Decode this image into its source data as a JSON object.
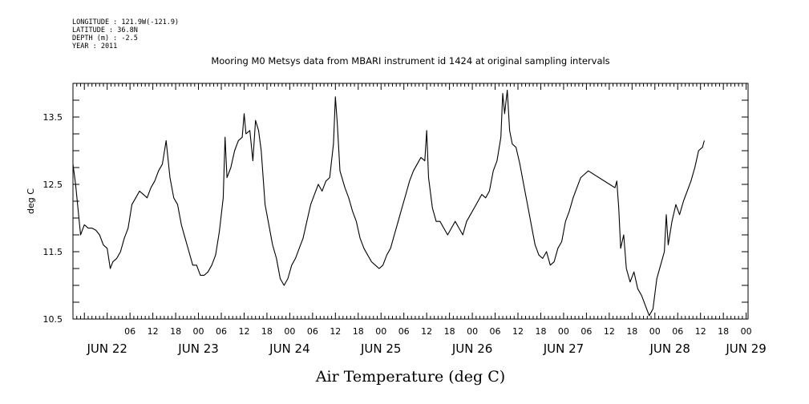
{
  "header": {
    "longitude": "LONGITUDE : 121.9W(-121.9)",
    "latitude": "LATITUDE : 36.8N",
    "depth": "DEPTH (m) : -2.5",
    "year": "YEAR : 2011"
  },
  "chart_data": {
    "type": "line",
    "title": "Mooring M0 Metsys data from MBARI instrument id 1424 at original sampling intervals",
    "xlabel": "Air Temperature (deg C)",
    "ylabel": "deg C",
    "x_units": "hours since JUN 22 00:00, 2011",
    "xlim": [
      -9,
      168.5
    ],
    "ylim": [
      10.5,
      14.0
    ],
    "y_ticks": [
      10.5,
      11.5,
      12.5,
      13.5
    ],
    "y_tick_labels": [
      "10.5",
      "11.5",
      "12.5",
      "13.5"
    ],
    "x_hour_ticks": [
      {
        "h": 6,
        "label": "06"
      },
      {
        "h": 12,
        "label": "12"
      },
      {
        "h": 18,
        "label": "18"
      },
      {
        "h": 24,
        "label": "00"
      },
      {
        "h": 30,
        "label": "06"
      },
      {
        "h": 36,
        "label": "12"
      },
      {
        "h": 42,
        "label": "18"
      },
      {
        "h": 48,
        "label": "00"
      },
      {
        "h": 54,
        "label": "06"
      },
      {
        "h": 60,
        "label": "12"
      },
      {
        "h": 66,
        "label": "18"
      },
      {
        "h": 72,
        "label": "00"
      },
      {
        "h": 78,
        "label": "06"
      },
      {
        "h": 84,
        "label": "12"
      },
      {
        "h": 90,
        "label": "18"
      },
      {
        "h": 96,
        "label": "00"
      },
      {
        "h": 102,
        "label": "06"
      },
      {
        "h": 108,
        "label": "12"
      },
      {
        "h": 114,
        "label": "18"
      },
      {
        "h": 120,
        "label": "00"
      },
      {
        "h": 126,
        "label": "06"
      },
      {
        "h": 132,
        "label": "12"
      },
      {
        "h": 138,
        "label": "18"
      },
      {
        "h": 144,
        "label": "00"
      },
      {
        "h": 150,
        "label": "06"
      },
      {
        "h": 156,
        "label": "12"
      },
      {
        "h": 162,
        "label": "18"
      },
      {
        "h": 168,
        "label": "00"
      }
    ],
    "x_day_labels": [
      {
        "h": 0,
        "label": "JUN 22"
      },
      {
        "h": 24,
        "label": "JUN 23"
      },
      {
        "h": 48,
        "label": "JUN 24"
      },
      {
        "h": 72,
        "label": "JUN 25"
      },
      {
        "h": 96,
        "label": "JUN 26"
      },
      {
        "h": 120,
        "label": "JUN 27"
      },
      {
        "h": 148,
        "label": "JUN 28"
      },
      {
        "h": 168,
        "label": "JUN 29"
      }
    ],
    "series": [
      {
        "color": "#000000",
        "points": [
          [
            -9,
            12.8
          ],
          [
            -8.3,
            12.5
          ],
          [
            -7.6,
            12.1
          ],
          [
            -7,
            11.75
          ],
          [
            -6,
            11.9
          ],
          [
            -5,
            11.85
          ],
          [
            -4,
            11.85
          ],
          [
            -3,
            11.82
          ],
          [
            -2,
            11.75
          ],
          [
            -1,
            11.6
          ],
          [
            0,
            11.55
          ],
          [
            0.8,
            11.25
          ],
          [
            1.5,
            11.35
          ],
          [
            2.5,
            11.4
          ],
          [
            3.5,
            11.5
          ],
          [
            4.5,
            11.7
          ],
          [
            5.5,
            11.85
          ],
          [
            6.5,
            12.2
          ],
          [
            7.5,
            12.3
          ],
          [
            8.5,
            12.4
          ],
          [
            9.5,
            12.35
          ],
          [
            10.5,
            12.3
          ],
          [
            11.5,
            12.45
          ],
          [
            12.5,
            12.55
          ],
          [
            13.5,
            12.7
          ],
          [
            14.5,
            12.8
          ],
          [
            15.5,
            13.15
          ],
          [
            16.5,
            12.6
          ],
          [
            17.5,
            12.3
          ],
          [
            18.5,
            12.2
          ],
          [
            19.5,
            11.9
          ],
          [
            20.5,
            11.7
          ],
          [
            21.5,
            11.5
          ],
          [
            22.5,
            11.3
          ],
          [
            23.5,
            11.3
          ],
          [
            24.5,
            11.15
          ],
          [
            25.5,
            11.15
          ],
          [
            26.5,
            11.2
          ],
          [
            27.5,
            11.3
          ],
          [
            28.5,
            11.45
          ],
          [
            29.5,
            11.8
          ],
          [
            30.5,
            12.3
          ],
          [
            31,
            13.2
          ],
          [
            31.5,
            12.6
          ],
          [
            32.5,
            12.75
          ],
          [
            33.5,
            13.0
          ],
          [
            34.5,
            13.15
          ],
          [
            35.5,
            13.2
          ],
          [
            36,
            13.55
          ],
          [
            36.5,
            13.25
          ],
          [
            37.5,
            13.3
          ],
          [
            38.3,
            12.85
          ],
          [
            39,
            13.45
          ],
          [
            39.8,
            13.3
          ],
          [
            40.5,
            13.0
          ],
          [
            41.5,
            12.2
          ],
          [
            42.5,
            11.9
          ],
          [
            43.5,
            11.6
          ],
          [
            44.5,
            11.4
          ],
          [
            45.5,
            11.1
          ],
          [
            46.5,
            11.0
          ],
          [
            47.5,
            11.1
          ],
          [
            48.5,
            11.3
          ],
          [
            49.5,
            11.4
          ],
          [
            50.5,
            11.55
          ],
          [
            51.5,
            11.7
          ],
          [
            52.5,
            11.95
          ],
          [
            53.5,
            12.2
          ],
          [
            54.5,
            12.35
          ],
          [
            55.5,
            12.5
          ],
          [
            56.5,
            12.4
          ],
          [
            57.5,
            12.55
          ],
          [
            58.5,
            12.6
          ],
          [
            59.5,
            13.1
          ],
          [
            60,
            13.8
          ],
          [
            60.5,
            13.4
          ],
          [
            61.2,
            12.7
          ],
          [
            62.5,
            12.45
          ],
          [
            63.5,
            12.3
          ],
          [
            64.5,
            12.1
          ],
          [
            65.5,
            11.95
          ],
          [
            66.5,
            11.7
          ],
          [
            67.5,
            11.55
          ],
          [
            68.5,
            11.45
          ],
          [
            69.5,
            11.35
          ],
          [
            70.5,
            11.3
          ],
          [
            71.5,
            11.25
          ],
          [
            72.5,
            11.3
          ],
          [
            73.5,
            11.45
          ],
          [
            74.5,
            11.55
          ],
          [
            75.5,
            11.75
          ],
          [
            76.5,
            11.95
          ],
          [
            77.5,
            12.15
          ],
          [
            78.5,
            12.35
          ],
          [
            79.5,
            12.55
          ],
          [
            80.5,
            12.7
          ],
          [
            81.5,
            12.8
          ],
          [
            82.5,
            12.9
          ],
          [
            83.5,
            12.85
          ],
          [
            84,
            13.3
          ],
          [
            84.5,
            12.6
          ],
          [
            85.5,
            12.15
          ],
          [
            86.5,
            11.95
          ],
          [
            87.5,
            11.95
          ],
          [
            88.5,
            11.85
          ],
          [
            89.5,
            11.75
          ],
          [
            90.5,
            11.85
          ],
          [
            91.5,
            11.95
          ],
          [
            92.5,
            11.85
          ],
          [
            93.5,
            11.75
          ],
          [
            94.5,
            11.95
          ],
          [
            95.5,
            12.05
          ],
          [
            96.5,
            12.15
          ],
          [
            97.5,
            12.25
          ],
          [
            98.5,
            12.35
          ],
          [
            99.5,
            12.3
          ],
          [
            100.5,
            12.4
          ],
          [
            101.5,
            12.7
          ],
          [
            102.5,
            12.85
          ],
          [
            103.5,
            13.2
          ],
          [
            104,
            13.85
          ],
          [
            104.5,
            13.55
          ],
          [
            105.2,
            13.9
          ],
          [
            105.8,
            13.3
          ],
          [
            106.5,
            13.1
          ],
          [
            107.5,
            13.05
          ],
          [
            108.5,
            12.8
          ],
          [
            109.5,
            12.5
          ],
          [
            110.5,
            12.2
          ],
          [
            111.5,
            11.9
          ],
          [
            112.5,
            11.6
          ],
          [
            113.5,
            11.45
          ],
          [
            114.5,
            11.4
          ],
          [
            115.5,
            11.5
          ],
          [
            116.5,
            11.3
          ],
          [
            117.5,
            11.35
          ],
          [
            118.5,
            11.55
          ],
          [
            119.5,
            11.65
          ],
          [
            120.5,
            11.95
          ],
          [
            121.5,
            12.1
          ],
          [
            122.5,
            12.3
          ],
          [
            123.5,
            12.45
          ],
          [
            124.5,
            12.6
          ],
          [
            125.5,
            12.65
          ],
          [
            126.5,
            12.7
          ],
          [
            133.5,
            12.45
          ],
          [
            134,
            12.55
          ],
          [
            134.5,
            12.15
          ],
          [
            135,
            11.55
          ],
          [
            135.8,
            11.75
          ],
          [
            136.5,
            11.25
          ],
          [
            137.5,
            11.05
          ],
          [
            138.5,
            11.2
          ],
          [
            139.5,
            10.95
          ],
          [
            140.5,
            10.85
          ],
          [
            141.5,
            10.7
          ],
          [
            142.5,
            10.55
          ],
          [
            143.5,
            10.65
          ],
          [
            144.5,
            11.1
          ],
          [
            145.5,
            11.3
          ],
          [
            146.5,
            11.5
          ],
          [
            147,
            12.05
          ],
          [
            147.5,
            11.6
          ],
          [
            148.5,
            11.95
          ],
          [
            149.5,
            12.2
          ],
          [
            150.5,
            12.05
          ],
          [
            151.5,
            12.25
          ],
          [
            152.5,
            12.4
          ],
          [
            153.5,
            12.55
          ],
          [
            154.5,
            12.75
          ],
          [
            155.5,
            13.0
          ],
          [
            156.5,
            13.05
          ],
          [
            157,
            13.15
          ]
        ]
      }
    ]
  }
}
